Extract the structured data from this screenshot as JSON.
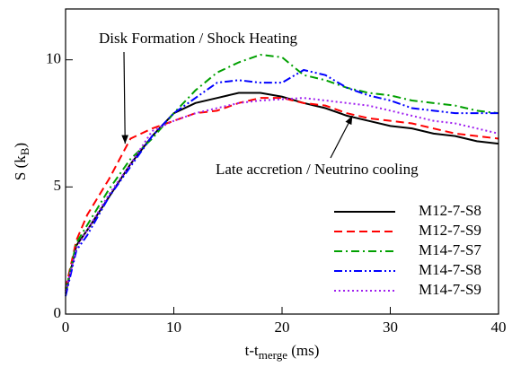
{
  "chart_data": {
    "type": "line",
    "xlabel": {
      "main": "t-t",
      "sub": "merge",
      "end": " (ms)"
    },
    "ylabel": {
      "main": "S (k",
      "sub": "B",
      "end": ")"
    },
    "xlim": [
      0,
      40
    ],
    "ylim": [
      0,
      12
    ],
    "xticks": [
      0,
      10,
      20,
      30,
      40
    ],
    "yticks": [
      0,
      5,
      10
    ],
    "legend": "lower right",
    "annotations": [
      {
        "text": "Disk Formation / Shock Heating",
        "x": 5.5,
        "y": 6.7
      },
      {
        "text": "Late accretion / Neutrino cooling",
        "x": 26.5,
        "y": 7.8
      }
    ],
    "x": [
      0,
      1,
      2,
      4,
      6,
      8,
      10,
      12,
      14,
      16,
      18,
      20,
      22,
      24,
      26,
      28,
      30,
      32,
      34,
      36,
      38,
      40
    ],
    "series": [
      {
        "name": "M12-7-S8",
        "color": "#000000",
        "style": "solid",
        "values": [
          0.8,
          2.7,
          3.3,
          4.6,
          5.9,
          7.0,
          7.9,
          8.3,
          8.5,
          8.7,
          8.7,
          8.55,
          8.3,
          8.1,
          7.8,
          7.6,
          7.4,
          7.3,
          7.1,
          7.0,
          6.8,
          6.7
        ]
      },
      {
        "name": "M12-7-S9",
        "color": "#ff0000",
        "style": "dashed",
        "values": [
          1.0,
          2.9,
          3.9,
          5.3,
          6.9,
          7.3,
          7.6,
          7.9,
          8.0,
          8.3,
          8.5,
          8.5,
          8.3,
          8.2,
          7.9,
          7.7,
          7.6,
          7.5,
          7.3,
          7.1,
          7.0,
          6.9
        ]
      },
      {
        "name": "M14-7-S7",
        "color": "#00a000",
        "style": "dashdot",
        "values": [
          0.9,
          2.8,
          3.5,
          4.9,
          6.1,
          6.9,
          7.9,
          8.8,
          9.5,
          9.9,
          10.2,
          10.1,
          9.4,
          9.2,
          8.9,
          8.7,
          8.6,
          8.4,
          8.3,
          8.2,
          8.0,
          7.9
        ]
      },
      {
        "name": "M14-7-S8",
        "color": "#0000ff",
        "style": "dashdotdot",
        "values": [
          0.7,
          2.5,
          3.1,
          4.6,
          5.8,
          7.0,
          7.9,
          8.5,
          9.1,
          9.2,
          9.1,
          9.1,
          9.6,
          9.4,
          8.9,
          8.6,
          8.4,
          8.1,
          8.0,
          7.9,
          7.9,
          7.9
        ]
      },
      {
        "name": "M14-7-S9",
        "color": "#a020f0",
        "style": "dotted",
        "values": [
          0.9,
          2.6,
          3.3,
          4.7,
          5.9,
          7.2,
          7.6,
          7.9,
          8.1,
          8.3,
          8.4,
          8.45,
          8.5,
          8.4,
          8.3,
          8.2,
          8.0,
          7.8,
          7.6,
          7.5,
          7.3,
          7.1
        ]
      }
    ]
  }
}
